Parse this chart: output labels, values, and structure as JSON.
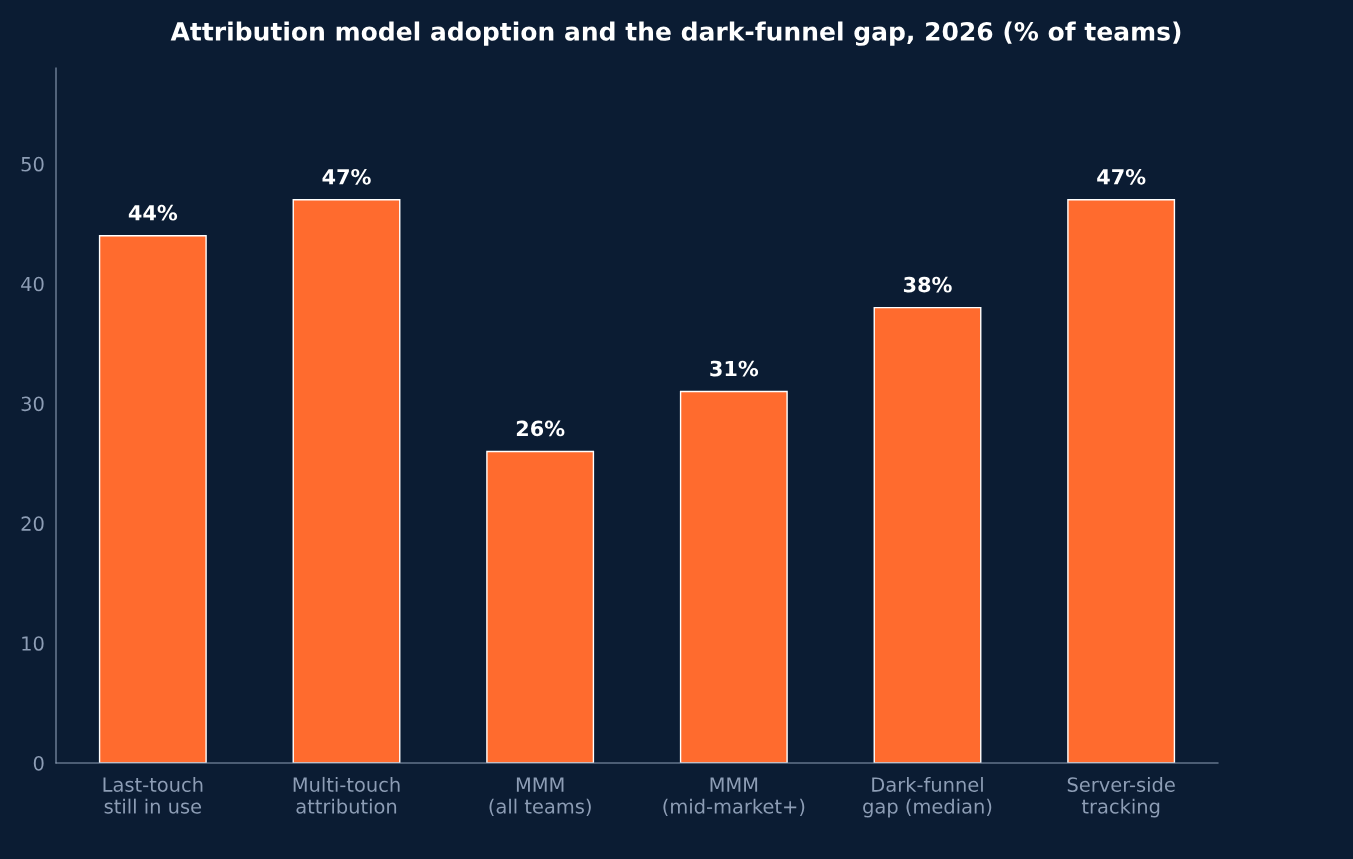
{
  "chart_data": {
    "type": "bar",
    "title": "Attribution model adoption and the dark-funnel gap, 2026 (% of teams)",
    "categories": [
      "Last-touch\nstill in use",
      "Multi-touch\nattribution",
      "MMM\n(all teams)",
      "MMM\n(mid-market+)",
      "Dark-funnel\ngap (median)",
      "Server-side\ntracking"
    ],
    "values": [
      44,
      47,
      26,
      31,
      38,
      47
    ],
    "value_labels": [
      "44%",
      "47%",
      "26%",
      "31%",
      "38%",
      "47%"
    ],
    "color": "#ff6b2e",
    "ylim": [
      0,
      58
    ],
    "yticks": [
      0,
      10,
      20,
      30,
      40,
      50
    ],
    "grid": false,
    "legend": false
  }
}
